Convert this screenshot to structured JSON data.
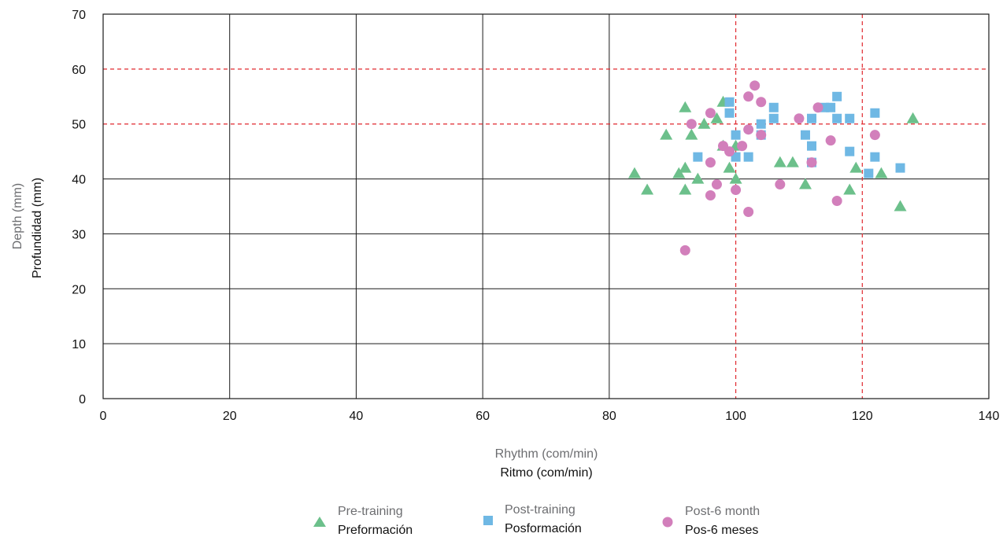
{
  "chart_data": {
    "type": "scatter",
    "xlabel_en": "Rhythm (com/min)",
    "xlabel_es": "Ritmo (com/min)",
    "ylabel_en": "Depth (mm)",
    "ylabel_es": "Profundidad (mm)",
    "xlim": [
      0,
      140
    ],
    "ylim": [
      0,
      70
    ],
    "x_ticks": [
      "0",
      "20",
      "40",
      "60",
      "80",
      "100",
      "120",
      "140"
    ],
    "y_ticks": [
      "0",
      "10",
      "20",
      "30",
      "40",
      "50",
      "60",
      "70"
    ],
    "grid": true,
    "reference_lines": {
      "x": [
        100,
        120
      ],
      "y": [
        50,
        60
      ],
      "color": "#e0282e"
    },
    "legend_position": "bottom",
    "series": [
      {
        "name_en": "Pre-training",
        "name_es": "Preformación",
        "marker": "triangle",
        "color": "#6cc08b",
        "points": [
          [
            84,
            41
          ],
          [
            86,
            38
          ],
          [
            89,
            48
          ],
          [
            91,
            41
          ],
          [
            92,
            42
          ],
          [
            92,
            38
          ],
          [
            92,
            53
          ],
          [
            93,
            48
          ],
          [
            94,
            40
          ],
          [
            95,
            50
          ],
          [
            97,
            51
          ],
          [
            98,
            46
          ],
          [
            98,
            54
          ],
          [
            99,
            42
          ],
          [
            100,
            46
          ],
          [
            100,
            40
          ],
          [
            107,
            43
          ],
          [
            109,
            43
          ],
          [
            111,
            39
          ],
          [
            118,
            38
          ],
          [
            119,
            42
          ],
          [
            123,
            41
          ],
          [
            126,
            35
          ],
          [
            128,
            51
          ]
        ]
      },
      {
        "name_en": "Post-training",
        "name_es": "Posformación",
        "marker": "square",
        "color": "#6fb8e4",
        "points": [
          [
            94,
            44
          ],
          [
            99,
            54
          ],
          [
            99,
            52
          ],
          [
            100,
            48
          ],
          [
            100,
            44
          ],
          [
            102,
            44
          ],
          [
            104,
            50
          ],
          [
            104,
            48
          ],
          [
            106,
            53
          ],
          [
            106,
            51
          ],
          [
            111,
            48
          ],
          [
            112,
            51
          ],
          [
            112,
            46
          ],
          [
            112,
            43
          ],
          [
            114,
            53
          ],
          [
            115,
            53
          ],
          [
            116,
            55
          ],
          [
            116,
            51
          ],
          [
            118,
            51
          ],
          [
            118,
            45
          ],
          [
            121,
            41
          ],
          [
            122,
            52
          ],
          [
            122,
            44
          ],
          [
            126,
            42
          ]
        ]
      },
      {
        "name_en": "Post-6 month",
        "name_es": "Pos-6 meses",
        "marker": "circle",
        "color": "#d27fbb",
        "points": [
          [
            92,
            27
          ],
          [
            93,
            50
          ],
          [
            96,
            52
          ],
          [
            96,
            43
          ],
          [
            96,
            37
          ],
          [
            97,
            39
          ],
          [
            98,
            46
          ],
          [
            99,
            45
          ],
          [
            100,
            38
          ],
          [
            101,
            46
          ],
          [
            102,
            34
          ],
          [
            102,
            49
          ],
          [
            102,
            55
          ],
          [
            103,
            57
          ],
          [
            104,
            54
          ],
          [
            104,
            48
          ],
          [
            107,
            39
          ],
          [
            110,
            51
          ],
          [
            112,
            43
          ],
          [
            113,
            53
          ],
          [
            115,
            47
          ],
          [
            116,
            36
          ],
          [
            122,
            48
          ]
        ]
      }
    ]
  }
}
